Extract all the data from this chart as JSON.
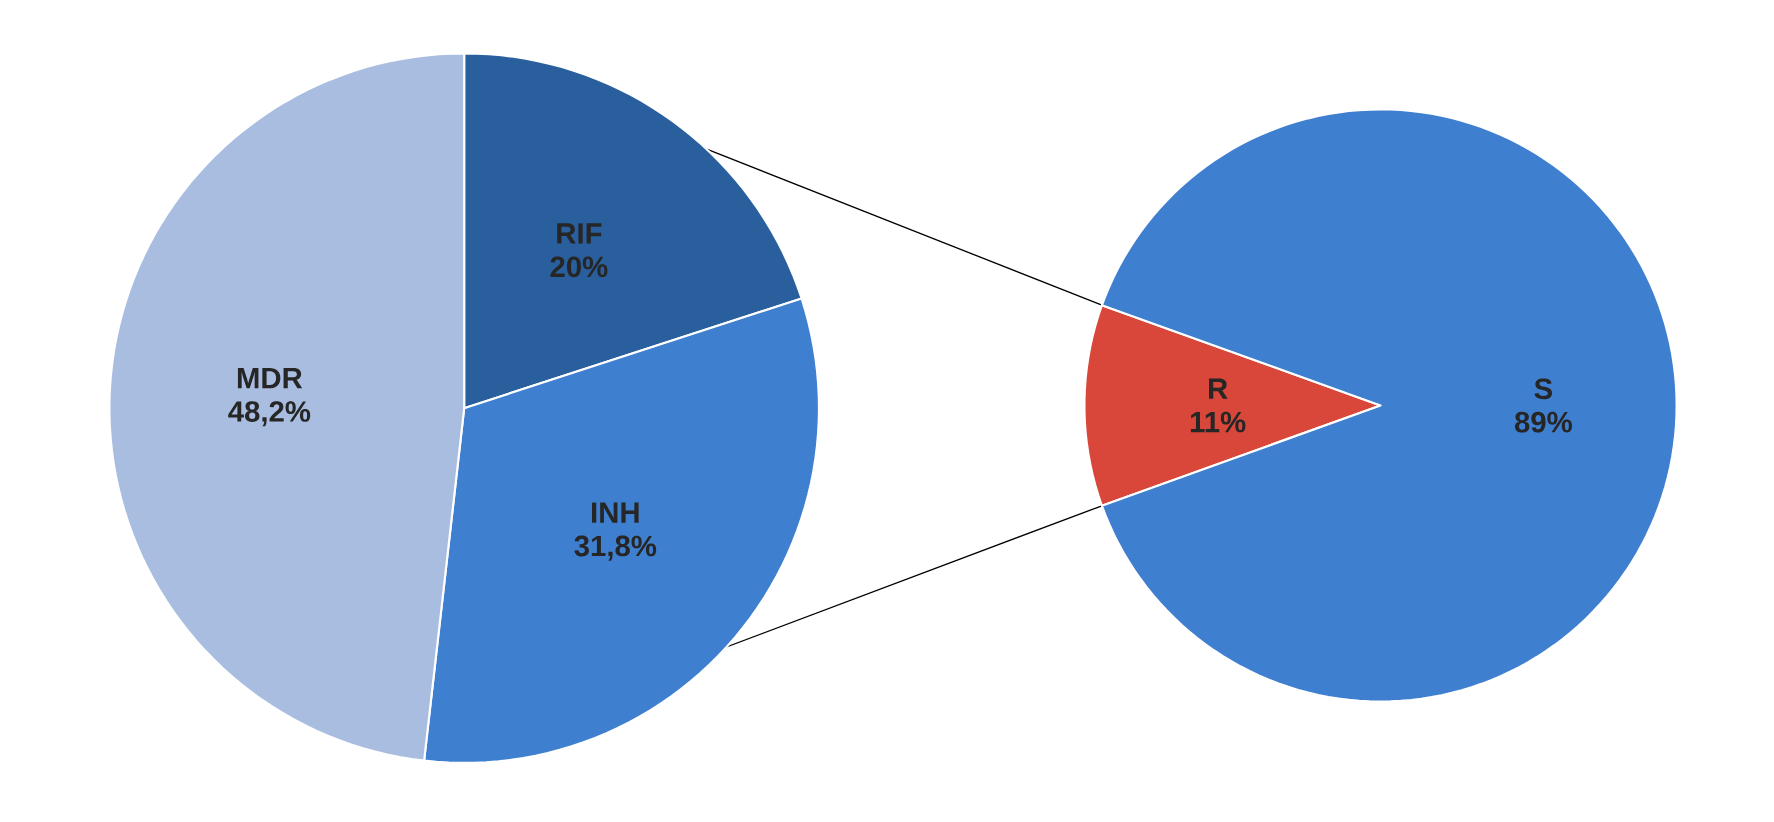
{
  "chart_data": [
    {
      "type": "pie",
      "categories": [
        "RIF",
        "INH",
        "MDR"
      ],
      "values": [
        20,
        31.8,
        48.2
      ],
      "colors": [
        "#2a5f9e",
        "#3f7fd0",
        "#a9bde0"
      ],
      "value_labels": [
        "20%",
        "31,8%",
        "48,2%"
      ]
    },
    {
      "type": "pie",
      "categories": [
        "R",
        "S"
      ],
      "values": [
        11,
        89
      ],
      "colors": [
        "#d9473a",
        "#3f7fd0"
      ],
      "value_labels": [
        "11%",
        "89%"
      ]
    }
  ]
}
